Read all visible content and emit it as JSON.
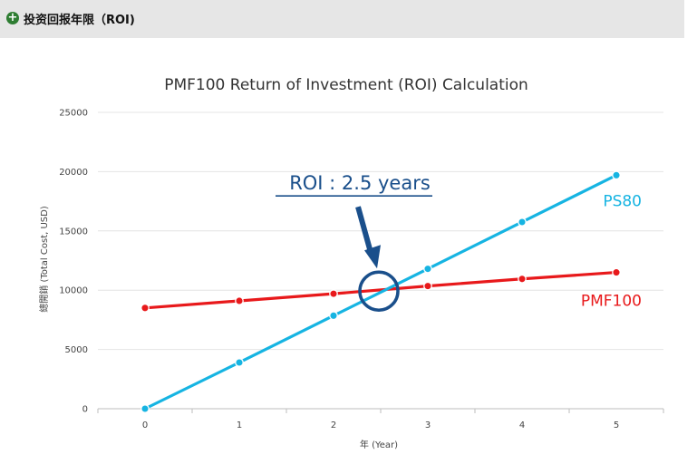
{
  "header": {
    "icon": "plus-circle-icon",
    "title": "投资回报年限（ROI)"
  },
  "chart_data": {
    "type": "line",
    "title": "PMF100 Return of Investment (ROI) Calculation",
    "xlabel": "年 (Year)",
    "ylabel": "總開銷 (Total Cost, USD)",
    "x": [
      0,
      1,
      2,
      3,
      4,
      5
    ],
    "xlim": [
      -0.5,
      5.5
    ],
    "ylim": [
      0,
      25000
    ],
    "yticks": [
      0,
      5000,
      10000,
      15000,
      20000,
      25000
    ],
    "grid": true,
    "series": [
      {
        "name": "PMF100",
        "color": "#e8191b",
        "values": [
          8500,
          9100,
          9700,
          10350,
          10950,
          11500
        ]
      },
      {
        "name": "PS80",
        "color": "#16b4e2",
        "values": [
          0,
          3900,
          7850,
          11800,
          15750,
          19700
        ]
      }
    ],
    "annotation": {
      "text": "ROI : 2.5 years",
      "x": 2.5,
      "y": 10000,
      "color": "#1a4f8b"
    }
  }
}
